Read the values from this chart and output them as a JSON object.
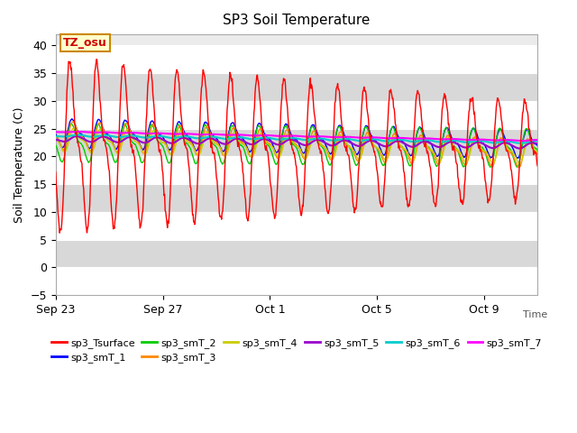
{
  "title": "SP3 Soil Temperature",
  "xlabel": "Time",
  "ylabel": "Soil Temperature (C)",
  "ylim": [
    -5,
    42
  ],
  "yticks": [
    -5,
    0,
    5,
    10,
    15,
    20,
    25,
    30,
    35,
    40
  ],
  "xtick_labels": [
    "Sep 23",
    "Sep 27",
    "Oct 1",
    "Oct 5",
    "Oct 9"
  ],
  "background_color": "#ffffff",
  "plot_bg_color": "#ebebeb",
  "series_colors": {
    "sp3_Tsurface": "#ff0000",
    "sp3_smT_1": "#0000ff",
    "sp3_smT_2": "#00cc00",
    "sp3_smT_3": "#ff8800",
    "sp3_smT_4": "#cccc00",
    "sp3_smT_5": "#9900cc",
    "sp3_smT_6": "#00cccc",
    "sp3_smT_7": "#ff00ff"
  },
  "annotation_text": "TZ_osu",
  "annotation_color": "#cc0000",
  "annotation_bg": "#ffffcc",
  "annotation_border": "#cc8800",
  "n_days": 18,
  "pts_per_day": 48
}
